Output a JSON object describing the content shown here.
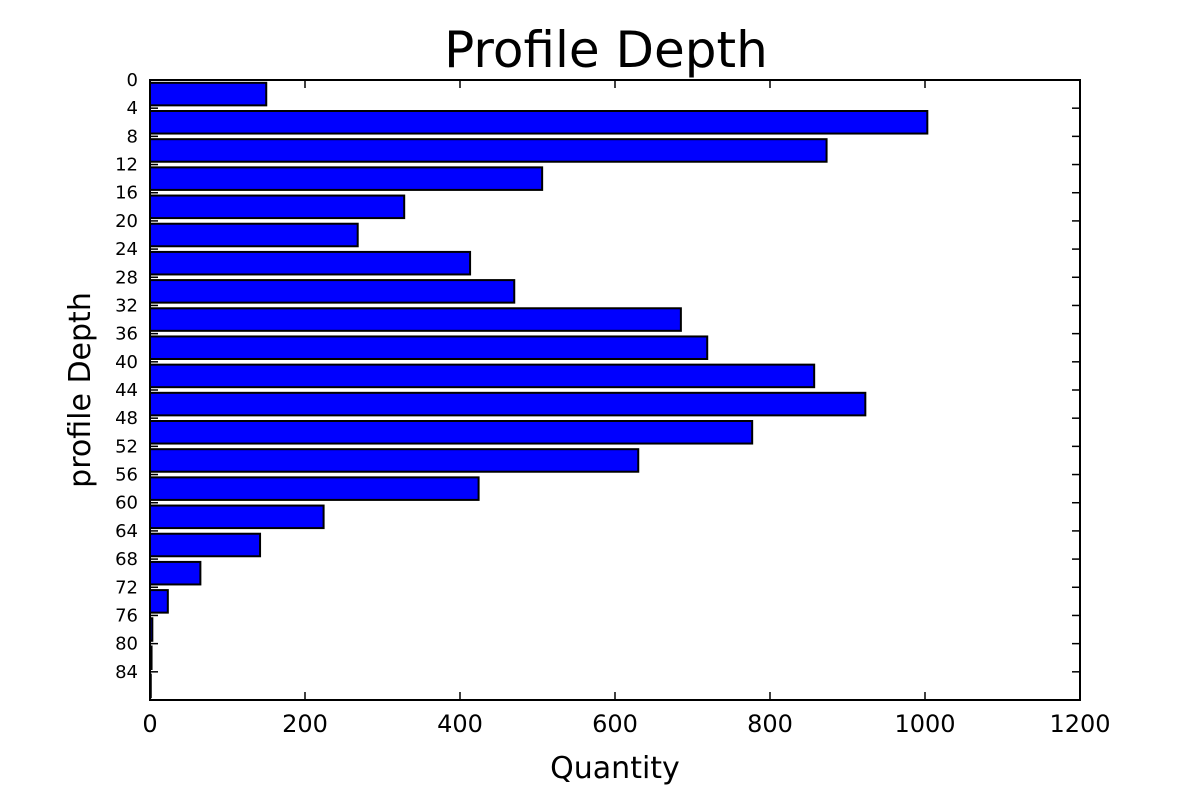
{
  "chart_data": {
    "type": "bar",
    "orientation": "horizontal",
    "title": "Profile  Depth",
    "xlabel": "Quantity",
    "ylabel": "profile Depth",
    "xlim": [
      0,
      1200
    ],
    "xticks": [
      "0",
      "200",
      "400",
      "600",
      "800",
      "1000",
      "1200"
    ],
    "ylim": [
      0,
      88
    ],
    "y_inverted": true,
    "yticks": [
      "0",
      "4",
      "8",
      "12",
      "16",
      "20",
      "24",
      "28",
      "32",
      "36",
      "40",
      "44",
      "48",
      "52",
      "56",
      "60",
      "64",
      "68",
      "72",
      "76",
      "80",
      "84"
    ],
    "categories": [
      "0",
      "4",
      "8",
      "12",
      "16",
      "20",
      "24",
      "28",
      "32",
      "36",
      "40",
      "44",
      "48",
      "52",
      "56",
      "60",
      "64",
      "68",
      "72",
      "76",
      "80",
      "84"
    ],
    "values": [
      150,
      1003,
      873,
      506,
      328,
      268,
      413,
      470,
      685,
      719,
      857,
      923,
      777,
      630,
      424,
      224,
      142,
      65,
      23,
      3,
      2,
      1
    ],
    "bar_color": "#0000ff",
    "edge_color": "#000000",
    "grid": false
  }
}
